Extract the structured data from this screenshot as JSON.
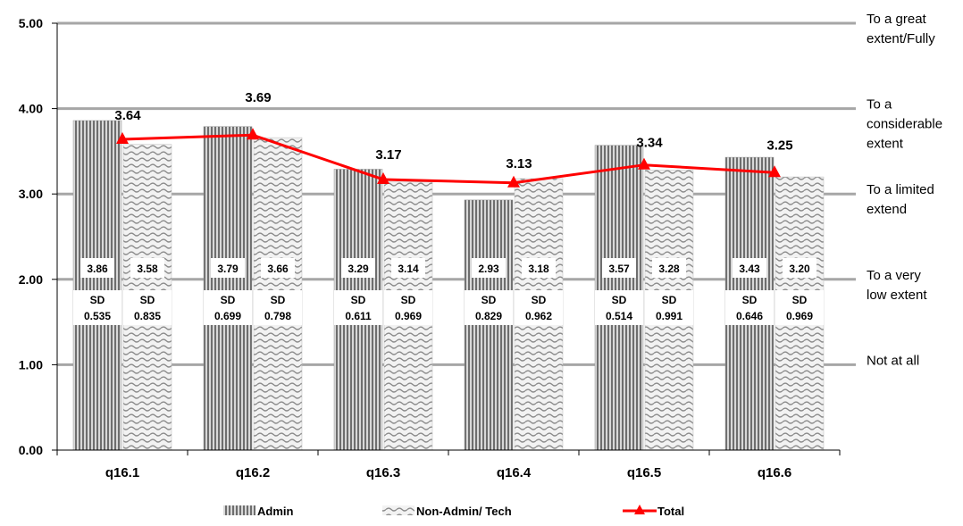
{
  "chart_data": {
    "type": "bar",
    "categories": [
      "q16.1",
      "q16.2",
      "q16.3",
      "q16.4",
      "q16.5",
      "q16.6"
    ],
    "ylim": [
      0,
      5
    ],
    "yticks": [
      "0.00",
      "1.00",
      "2.00",
      "3.00",
      "4.00",
      "5.00"
    ],
    "grid": true,
    "legend_position": "bottom",
    "series": [
      {
        "name": "Admin",
        "kind": "bar",
        "pattern": "vertical-stripes",
        "values": [
          3.86,
          3.79,
          3.29,
          2.93,
          3.57,
          3.43
        ],
        "labels": [
          "3.86",
          "3.79",
          "3.29",
          "2.93",
          "3.57",
          "3.43"
        ],
        "sd_label": "SD",
        "sd": [
          "0.535",
          "0.699",
          "0.611",
          "0.829",
          "0.514",
          "0.646"
        ]
      },
      {
        "name": "Non-Admin/ Tech",
        "kind": "bar",
        "pattern": "waves",
        "values": [
          3.58,
          3.66,
          3.14,
          3.18,
          3.28,
          3.2
        ],
        "labels": [
          "3.58",
          "3.66",
          "3.14",
          "3.18",
          "3.28",
          "3.20"
        ],
        "sd_label": "SD",
        "sd": [
          "0.835",
          "0.798",
          "0.969",
          "0.962",
          "0.991",
          "0.969"
        ]
      },
      {
        "name": "Total",
        "kind": "line",
        "color": "#ff0000",
        "marker": "triangle",
        "values": [
          3.64,
          3.69,
          3.17,
          3.13,
          3.34,
          3.25
        ],
        "labels": [
          "3.64",
          "3.69",
          "3.17",
          "3.13",
          "3.34",
          "3.25"
        ]
      }
    ],
    "scale_labels": [
      {
        "value": 5,
        "lines": [
          "To a great",
          "extent/Fully"
        ]
      },
      {
        "value": 4,
        "lines": [
          "To a",
          "considerable",
          "extent"
        ]
      },
      {
        "value": 3,
        "lines": [
          "To a limited",
          "extend"
        ]
      },
      {
        "value": 2,
        "lines": [
          "To a very",
          "low extent"
        ]
      },
      {
        "value": 1,
        "lines": [
          "Not at all"
        ]
      }
    ]
  }
}
